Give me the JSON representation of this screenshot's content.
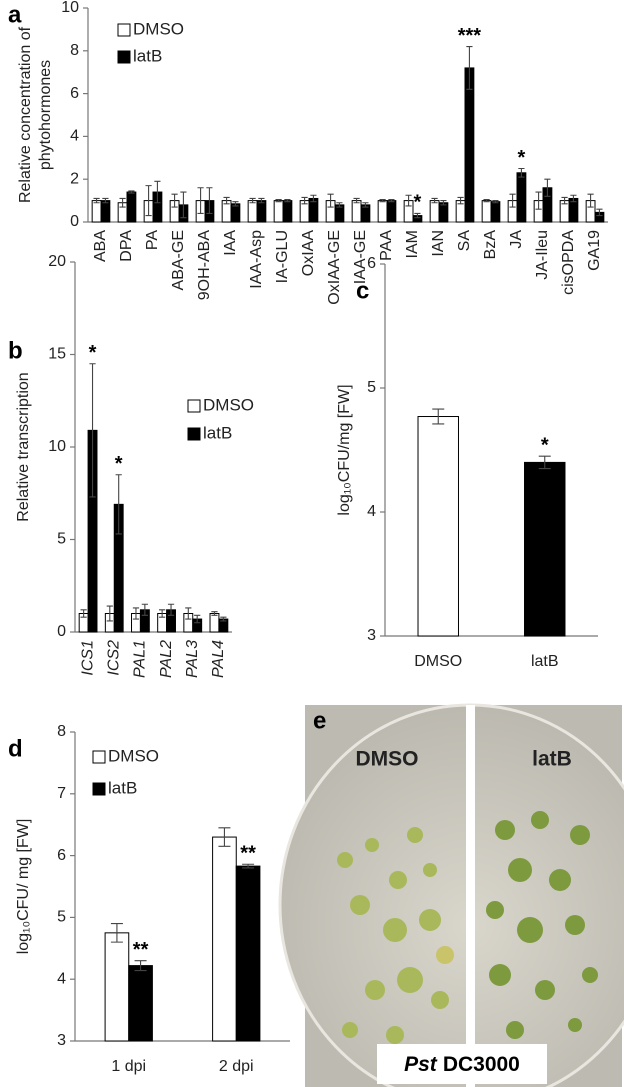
{
  "chart_data": [
    {
      "type": "bar",
      "label": "a",
      "ylabel": [
        "Relative concentration of",
        "phytohormones"
      ],
      "categories": [
        "ABA",
        "DPA",
        "PA",
        "ABA-GE",
        "9OH-ABA",
        "IAA",
        "IAA-Asp",
        "IA-GLU",
        "OxIAA",
        "OxIAA-GE",
        "IAA-GE",
        "PAA",
        "IAM",
        "IAN",
        "SA",
        "BzA",
        "JA",
        "JA-Ileu",
        "cisOPDA",
        "GA19"
      ],
      "series": [
        {
          "name": "DMSO",
          "color": "#ffffff",
          "values": [
            1.0,
            0.9,
            1.0,
            1.0,
            1.0,
            1.0,
            1.0,
            1.0,
            1.0,
            1.0,
            1.0,
            1.0,
            1.0,
            1.0,
            1.0,
            1.0,
            1.0,
            1.0,
            1.0,
            1.0
          ],
          "errors": [
            0.1,
            0.2,
            0.7,
            0.3,
            0.6,
            0.15,
            0.1,
            0.05,
            0.15,
            0.3,
            0.1,
            0.05,
            0.25,
            0.1,
            0.15,
            0.05,
            0.3,
            0.4,
            0.15,
            0.3
          ]
        },
        {
          "name": "latB",
          "color": "#000000",
          "values": [
            1.0,
            1.4,
            1.4,
            0.8,
            1.0,
            0.85,
            1.0,
            1.0,
            1.1,
            0.8,
            0.8,
            1.0,
            0.3,
            0.9,
            7.2,
            0.95,
            2.3,
            1.6,
            1.1,
            0.45
          ],
          "errors": [
            0.1,
            0.05,
            0.5,
            0.6,
            0.6,
            0.1,
            0.1,
            0.05,
            0.15,
            0.1,
            0.1,
            0.05,
            0.1,
            0.1,
            1.0,
            0.05,
            0.2,
            0.4,
            0.15,
            0.15
          ],
          "annotations": [
            null,
            null,
            null,
            null,
            null,
            null,
            null,
            null,
            null,
            null,
            null,
            null,
            "*",
            null,
            "***",
            null,
            "*",
            null,
            null,
            null
          ]
        }
      ],
      "ylim": [
        0,
        10
      ],
      "yticks": [
        0,
        2,
        4,
        6,
        8,
        10
      ],
      "legend": "upper left"
    },
    {
      "type": "bar",
      "label": "b",
      "ylabel": [
        "Relative transcription"
      ],
      "categories": [
        "ICS1",
        "ICS2",
        "PAL1",
        "PAL2",
        "PAL3",
        "PAL4"
      ],
      "italic_categories": true,
      "series": [
        {
          "name": "DMSO",
          "color": "#ffffff",
          "values": [
            1.0,
            1.0,
            1.0,
            1.0,
            1.0,
            1.0
          ],
          "errors": [
            0.2,
            0.4,
            0.3,
            0.2,
            0.3,
            0.1
          ]
        },
        {
          "name": "latB",
          "color": "#000000",
          "values": [
            10.9,
            6.9,
            1.2,
            1.2,
            0.7,
            0.7
          ],
          "errors": [
            3.6,
            1.6,
            0.3,
            0.3,
            0.2,
            0.1
          ],
          "annotations": [
            "*",
            "*",
            null,
            null,
            null,
            null
          ]
        }
      ],
      "ylim": [
        0,
        20
      ],
      "yticks": [
        0,
        5,
        10,
        15,
        20
      ],
      "legend": "upper right"
    },
    {
      "type": "bar",
      "label": "c",
      "ylabel": [
        "log₁₀CFU/mg [FW]"
      ],
      "categories": [
        "DMSO",
        "latB"
      ],
      "values": [
        4.77,
        4.4
      ],
      "errors": [
        0.06,
        0.05
      ],
      "colors": [
        "#ffffff",
        "#000000"
      ],
      "annotations": [
        null,
        "*"
      ],
      "ylim": [
        3,
        6
      ],
      "yticks": [
        3,
        4,
        5,
        6
      ]
    },
    {
      "type": "bar",
      "label": "d",
      "ylabel": [
        "log₁₀CFU/ mg [FW]"
      ],
      "categories": [
        "1 dpi",
        "2 dpi"
      ],
      "series": [
        {
          "name": "DMSO",
          "color": "#ffffff",
          "values": [
            4.75,
            6.3
          ],
          "errors": [
            0.15,
            0.15
          ]
        },
        {
          "name": "latB",
          "color": "#000000",
          "values": [
            4.22,
            5.83
          ],
          "errors": [
            0.08,
            0.03
          ],
          "annotations": [
            "**",
            "**"
          ]
        }
      ],
      "ylim": [
        3,
        8
      ],
      "yticks": [
        3,
        4,
        5,
        6,
        7,
        8
      ],
      "legend": "upper left"
    }
  ],
  "photo": {
    "label": "e",
    "left_text": "DMSO",
    "right_text": "latB",
    "caption_italic": "Pst",
    "caption": "DC3000"
  }
}
